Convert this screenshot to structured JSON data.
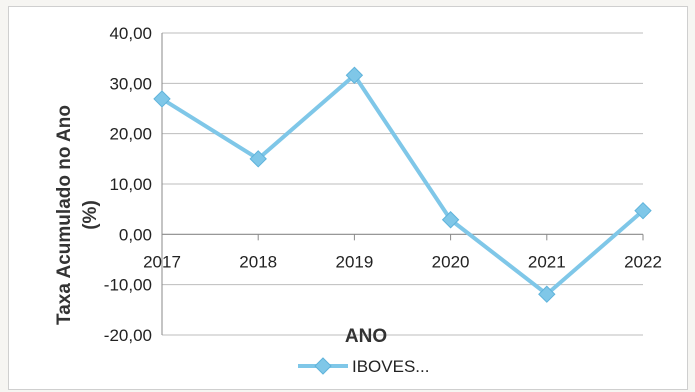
{
  "chart_data": {
    "type": "line",
    "title": "",
    "xlabel": "ANO",
    "ylabel": "Taxa Acumulado no Ano (%)",
    "ylabel_lines": [
      "Taxa Acumulado no Ano",
      "(%)"
    ],
    "x": [
      "2017",
      "2018",
      "2019",
      "2020",
      "2021",
      "2022"
    ],
    "ylim": [
      -20,
      40
    ],
    "yticks": [
      -20,
      -10,
      0,
      10,
      20,
      30,
      40
    ],
    "ytick_labels": [
      "-20,00",
      "-10,00",
      "0,00",
      "10,00",
      "20,00",
      "30,00",
      "40,00"
    ],
    "grid": true,
    "legend": "bottom",
    "series": [
      {
        "name": "IBOVES...",
        "values": [
          26.9,
          15.0,
          31.6,
          2.9,
          -11.9,
          4.7
        ],
        "color": "#7fc7e8"
      }
    ]
  }
}
